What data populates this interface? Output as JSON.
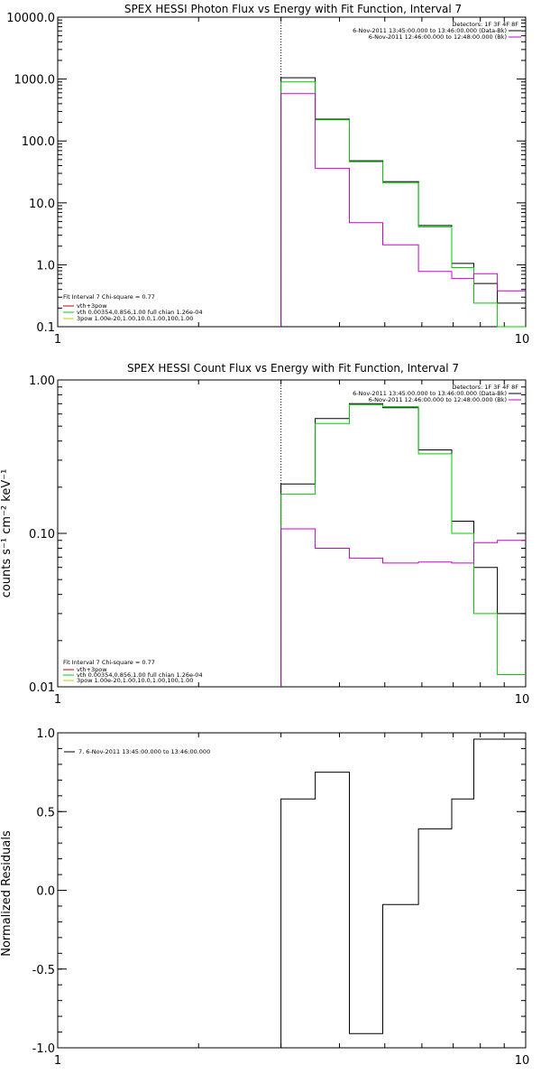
{
  "chart_data": [
    {
      "type": "line",
      "title": "SPEX HESSI Photon Flux vs Energy with Fit Function, Interval 7",
      "ylabel": "",
      "xlim": [
        1,
        10
      ],
      "ylim": [
        0.1,
        10000
      ],
      "xscale": "log",
      "yscale": "log",
      "x_ticks": [
        "1",
        "10"
      ],
      "y_ticks": [
        "0.1",
        "1.0",
        "10.0",
        "100.0",
        "1000.0",
        "10000.0"
      ],
      "vline": 3,
      "legend_top_right": {
        "header": "Detectors: 1F 3F 4F 8F",
        "entries": [
          {
            "text": "6-Nov-2011 13:45:00.000 to 13:46:00.000 (Data-Bk)",
            "color": "#000000"
          },
          {
            "text": "6-Nov-2011 12:46:00.000 to 12:48:00.000 (Bk)",
            "color": "#cc00cc"
          }
        ]
      },
      "legend_bottom_left": {
        "header": "Fit Interval 7   Chi-square = 0.77",
        "entries": [
          {
            "text": "vth+3pow",
            "color": "#cc0000"
          },
          {
            "text": "vth 0.00354,0.856,1.00  full chian 1.26e-04",
            "color": "#00cc00"
          },
          {
            "text": "3pow 1.00e-20,1.00,10.0,1.00,100,1.00",
            "color": "#cccc00"
          }
        ]
      },
      "bin_edges": [
        3.0,
        3.55,
        4.2,
        4.95,
        5.9,
        6.95,
        7.75,
        8.7,
        10.0
      ],
      "series": [
        {
          "name": "Data-Bk",
          "color": "#000000",
          "values": [
            1050,
            225,
            48,
            22,
            4.3,
            1.05,
            0.5,
            0.24
          ]
        },
        {
          "name": "vth",
          "color": "#00cc00",
          "values": [
            900,
            220,
            46,
            21,
            4.1,
            0.9,
            0.24,
            0.1
          ]
        },
        {
          "name": "Bk",
          "color": "#cc00cc",
          "values": [
            580,
            36,
            4.8,
            2.1,
            0.78,
            0.6,
            0.72,
            0.38
          ]
        }
      ]
    },
    {
      "type": "line",
      "title": "SPEX HESSI Count Flux vs Energy with Fit Function, Interval 7",
      "ylabel": "counts s⁻¹ cm⁻² keV⁻¹",
      "xlim": [
        1,
        10
      ],
      "ylim": [
        0.01,
        1.0
      ],
      "xscale": "log",
      "yscale": "log",
      "x_ticks": [
        "1",
        "10"
      ],
      "y_ticks": [
        "0.01",
        "0.10",
        "1.00"
      ],
      "vline": 3,
      "legend_top_right": {
        "header": "Detectors: 1F 3F 4F 8F",
        "entries": [
          {
            "text": "6-Nov-2011 13:45:00.000 to 13:46:00.000 (Data-Bk)",
            "color": "#000000"
          },
          {
            "text": "6-Nov-2011 12:46:00.000 to 12:48:00.000 (Bk)",
            "color": "#cc00cc"
          }
        ]
      },
      "legend_bottom_left": {
        "header": "Fit Interval 7   Chi-square = 0.77",
        "entries": [
          {
            "text": "vth+3pow",
            "color": "#cc0000"
          },
          {
            "text": "vth 0.00354,0.856,1.00  full chian 1.26e-04",
            "color": "#00cc00"
          },
          {
            "text": "3pow 1.00e-20,1.00,10.0,1.00,100,1.00",
            "color": "#cccc00"
          }
        ]
      },
      "bin_edges": [
        3.0,
        3.55,
        4.2,
        4.95,
        5.9,
        6.95,
        7.75,
        8.7,
        10.0
      ],
      "series": [
        {
          "name": "Data-Bk",
          "color": "#000000",
          "values": [
            0.21,
            0.56,
            0.7,
            0.66,
            0.35,
            0.12,
            0.06,
            0.03
          ]
        },
        {
          "name": "vth",
          "color": "#00cc00",
          "values": [
            0.18,
            0.52,
            0.69,
            0.67,
            0.33,
            0.1,
            0.03,
            0.012
          ]
        },
        {
          "name": "Bk",
          "color": "#cc00cc",
          "values": [
            0.107,
            0.08,
            0.069,
            0.064,
            0.065,
            0.064,
            0.087,
            0.09
          ]
        }
      ]
    },
    {
      "type": "line",
      "title": "",
      "ylabel": "Normalized Residuals",
      "xlim": [
        1,
        10
      ],
      "ylim": [
        -1.0,
        1.0
      ],
      "xscale": "log",
      "yscale": "linear",
      "x_ticks": [
        "1",
        "10"
      ],
      "y_ticks": [
        "-1.0",
        "-0.5",
        "0.0",
        "0.5",
        "1.0"
      ],
      "legend": {
        "entries": [
          {
            "text": "7.  6-Nov-2011 13:45:00.000 to 13:46:00.000",
            "color": "#000000"
          }
        ]
      },
      "bin_edges": [
        3.0,
        3.55,
        4.2,
        4.95,
        5.9,
        6.95,
        7.75,
        8.7,
        10.0
      ],
      "series": [
        {
          "color": "#000000",
          "values": [
            0.58,
            0.75,
            -0.91,
            -0.09,
            0.39,
            0.58,
            0.96,
            0.96
          ]
        }
      ]
    }
  ]
}
